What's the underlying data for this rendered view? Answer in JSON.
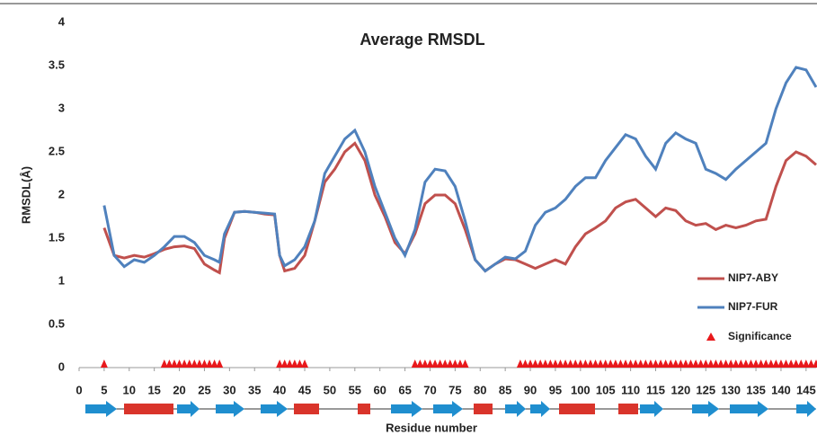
{
  "chart_data": {
    "type": "line",
    "title": "Average RMSDL",
    "ylabel": "RMSDL(Å)",
    "xlabel": "Residue number",
    "x": [
      5,
      7,
      9,
      11,
      13,
      15,
      17,
      19,
      21,
      23,
      25,
      27,
      28,
      29,
      31,
      33,
      35,
      37,
      39,
      40,
      41,
      43,
      45,
      47,
      49,
      51,
      53,
      55,
      57,
      59,
      61,
      63,
      65,
      67,
      69,
      71,
      73,
      75,
      77,
      79,
      81,
      83,
      85,
      87,
      89,
      91,
      93,
      95,
      97,
      99,
      101,
      103,
      105,
      107,
      109,
      111,
      113,
      115,
      117,
      119,
      121,
      123,
      125,
      127,
      129,
      131,
      133,
      135,
      137,
      139,
      141,
      143,
      145,
      147
    ],
    "series": [
      {
        "name": "NIP7-ABY",
        "color": "#c0504d",
        "values": [
          1.62,
          1.3,
          1.27,
          1.3,
          1.28,
          1.32,
          1.37,
          1.4,
          1.41,
          1.38,
          1.2,
          1.13,
          1.1,
          1.5,
          1.8,
          1.81,
          1.8,
          1.78,
          1.77,
          1.3,
          1.12,
          1.15,
          1.3,
          1.7,
          2.15,
          2.3,
          2.5,
          2.6,
          2.4,
          2.0,
          1.75,
          1.45,
          1.32,
          1.55,
          1.9,
          2.0,
          2.0,
          1.9,
          1.6,
          1.25,
          1.12,
          1.2,
          1.26,
          1.25,
          1.2,
          1.15,
          1.2,
          1.25,
          1.2,
          1.4,
          1.55,
          1.62,
          1.7,
          1.85,
          1.92,
          1.95,
          1.85,
          1.75,
          1.85,
          1.82,
          1.7,
          1.65,
          1.67,
          1.6,
          1.65,
          1.62,
          1.65,
          1.7,
          1.72,
          2.1,
          2.4,
          2.5,
          2.45,
          2.35
        ]
      },
      {
        "name": "NIP7-FUR",
        "color": "#4f81bd",
        "values": [
          1.88,
          1.3,
          1.17,
          1.25,
          1.22,
          1.3,
          1.4,
          1.52,
          1.52,
          1.45,
          1.3,
          1.25,
          1.22,
          1.55,
          1.8,
          1.81,
          1.8,
          1.79,
          1.78,
          1.3,
          1.18,
          1.25,
          1.4,
          1.7,
          2.25,
          2.45,
          2.65,
          2.75,
          2.5,
          2.1,
          1.8,
          1.5,
          1.3,
          1.6,
          2.15,
          2.3,
          2.28,
          2.1,
          1.7,
          1.25,
          1.12,
          1.2,
          1.28,
          1.26,
          1.35,
          1.65,
          1.8,
          1.85,
          1.95,
          2.1,
          2.2,
          2.2,
          2.4,
          2.55,
          2.7,
          2.65,
          2.45,
          2.3,
          2.6,
          2.72,
          2.65,
          2.6,
          2.3,
          2.25,
          2.18,
          2.3,
          2.4,
          2.5,
          2.6,
          3.0,
          3.3,
          3.48,
          3.45,
          3.25
        ]
      }
    ],
    "significance": {
      "name": "Significance",
      "color": "#e8191c",
      "x": [
        5,
        17,
        18,
        19,
        20,
        21,
        22,
        23,
        24,
        25,
        26,
        27,
        28,
        40,
        41,
        42,
        43,
        44,
        45,
        67,
        68,
        69,
        70,
        71,
        72,
        73,
        74,
        75,
        76,
        77,
        88,
        89,
        90,
        91,
        92,
        93,
        94,
        95,
        96,
        97,
        98,
        99,
        100,
        101,
        102,
        103,
        104,
        105,
        106,
        107,
        108,
        109,
        110,
        111,
        112,
        113,
        114,
        115,
        116,
        117,
        118,
        119,
        120,
        121,
        122,
        123,
        124,
        125,
        126,
        127,
        128,
        129,
        130,
        131,
        132,
        133,
        134,
        135,
        136,
        137,
        138,
        139,
        140,
        141,
        142,
        143,
        144,
        145,
        146,
        147
      ]
    },
    "xlim": [
      0,
      147
    ],
    "ylim": [
      0,
      4
    ],
    "xticks": [
      0,
      5,
      10,
      15,
      20,
      25,
      30,
      35,
      40,
      45,
      50,
      55,
      60,
      65,
      70,
      75,
      80,
      85,
      90,
      95,
      100,
      105,
      110,
      115,
      120,
      125,
      130,
      135,
      140,
      145
    ],
    "yticks": [
      0,
      0.5,
      1,
      1.5,
      2,
      2.5,
      3,
      3.5,
      4
    ]
  }
}
